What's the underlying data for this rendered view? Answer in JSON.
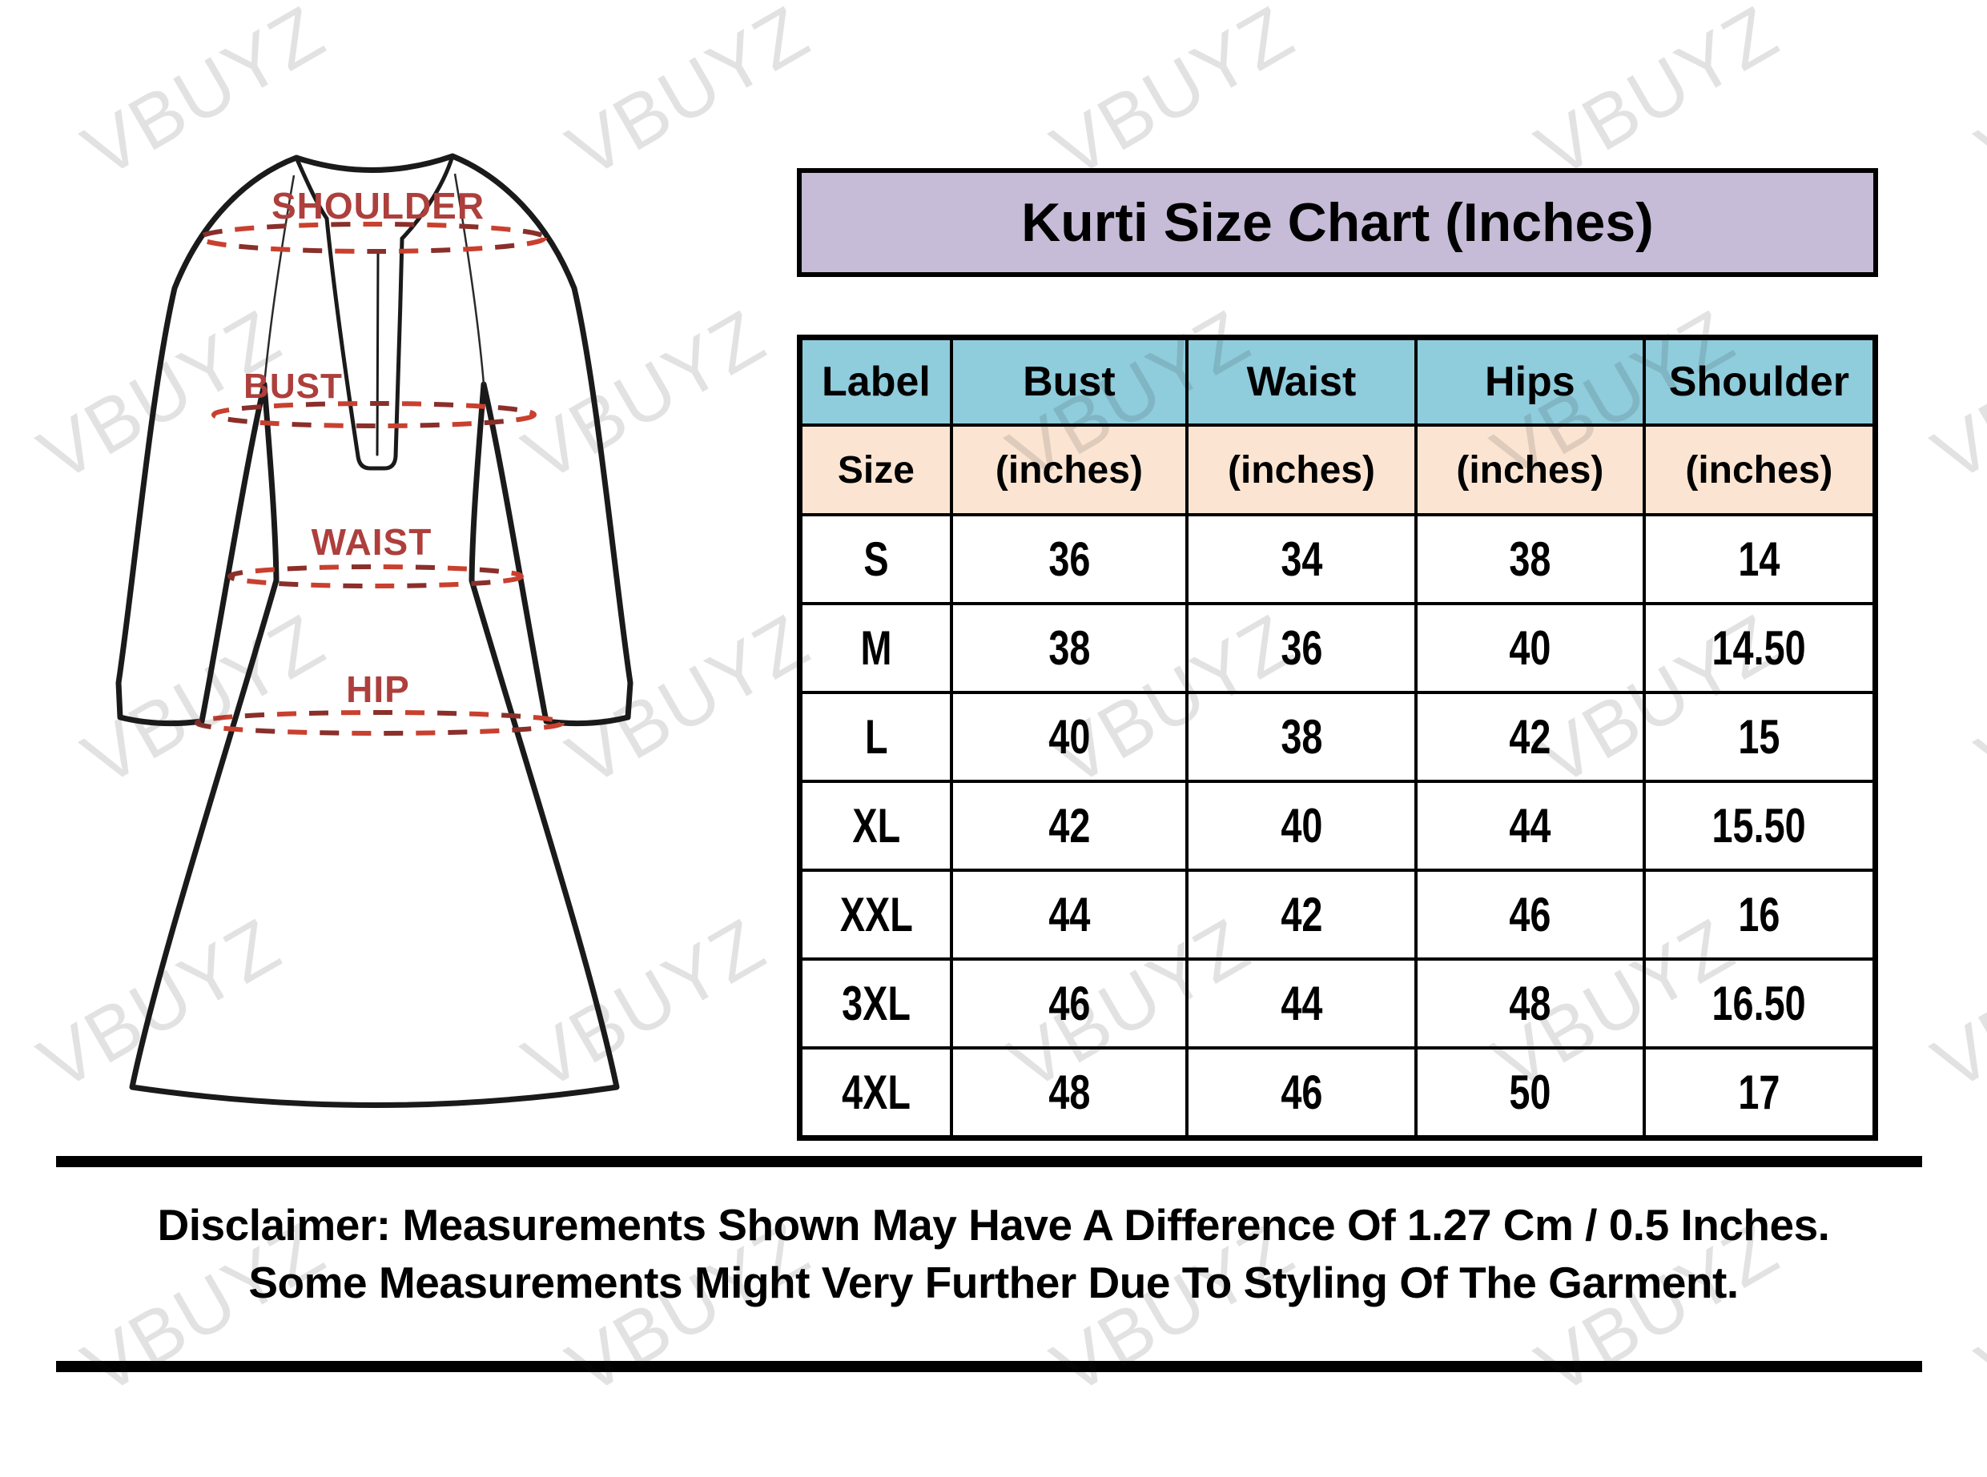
{
  "title": {
    "text": "Kurti Size Chart (Inches)",
    "bg": "#C6BCD7"
  },
  "diagram": {
    "labels": {
      "shoulder": "SHOULDER",
      "bust": "BUST",
      "waist": "WAIST",
      "hip": "HIP"
    },
    "label_color": "#AD3F3C",
    "dash_color_light": "#C9402F",
    "dash_color_dark": "#8A2F2A",
    "outline_color": "#1A1A1A"
  },
  "table": {
    "header": [
      "Label",
      "Bust",
      "Waist",
      "Hips",
      "Shoulder"
    ],
    "subheader": [
      "Size",
      "(inches)",
      "(inches)",
      "(inches)",
      "(inches)"
    ],
    "header_bg": "#8FCCDC",
    "subheader_bg": "#FBE5D2",
    "rows": [
      [
        "S",
        "36",
        "34",
        "38",
        "14"
      ],
      [
        "M",
        "38",
        "36",
        "40",
        "14.50"
      ],
      [
        "L",
        "40",
        "38",
        "42",
        "15"
      ],
      [
        "XL",
        "42",
        "40",
        "44",
        "15.50"
      ],
      [
        "XXL",
        "44",
        "42",
        "46",
        "16"
      ],
      [
        "3XL",
        "46",
        "44",
        "48",
        "16.50"
      ],
      [
        "4XL",
        "48",
        "46",
        "50",
        "17"
      ]
    ]
  },
  "disclaimer": {
    "line1": "Disclaimer: Measurements Shown May Have A Difference Of 1.27 Cm / 0.5 Inches.",
    "line2": "Some Measurements Might Very Further Due To Styling Of The Garment."
  },
  "watermark": {
    "text": "VBUYZ",
    "color": "#1a1a1a",
    "opacity": 0.12
  }
}
